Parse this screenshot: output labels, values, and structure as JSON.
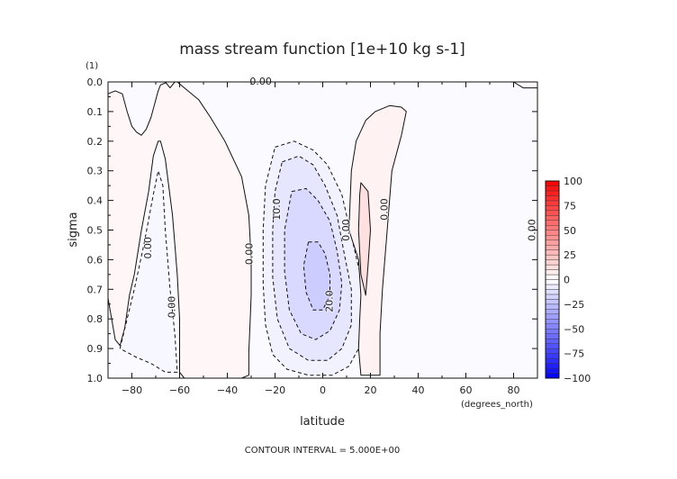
{
  "chart_data": {
    "type": "heatmap",
    "title": "mass stream function [1e+10 kg s-1]",
    "xlabel": "latitude",
    "ylabel": "sigma",
    "x_unit": "(degrees_north)",
    "y_unit": "(1)",
    "xlim": [
      -90,
      90
    ],
    "ylim": [
      0.0,
      1.0
    ],
    "y_inverted": true,
    "x_ticks": [
      -80,
      -60,
      -40,
      -20,
      0,
      20,
      40,
      60,
      80
    ],
    "y_ticks": [
      0.0,
      0.1,
      0.2,
      0.3,
      0.4,
      0.5,
      0.6,
      0.7,
      0.8,
      0.9,
      1.0
    ],
    "y_tick_labels": [
      "0.0",
      "0.1",
      "0.2",
      "0.3",
      "0.4",
      "0.5",
      "0.6",
      "0.7",
      "0.8",
      "0.9",
      "1.0"
    ],
    "contour_interval_text": "CONTOUR INTERVAL = 5.000E+00",
    "colorbar": {
      "min": -100,
      "max": 100,
      "ticks": [
        100,
        75,
        50,
        25,
        0,
        -25,
        -50,
        -75,
        -100
      ],
      "tick_labels": [
        "100",
        "75",
        "50",
        "25",
        "0",
        "−25",
        "−50",
        "−75",
        "−100"
      ],
      "low_color": "#0000ff",
      "mid_color": "#ffffff",
      "high_color": "#ff0000"
    },
    "background_value": -2,
    "regions": [
      {
        "name": "sh-polar-cell",
        "value": 3,
        "points": [
          [
            -90,
            0.04
          ],
          [
            -87,
            0.03
          ],
          [
            -84,
            0.04
          ],
          [
            -82,
            0.1
          ],
          [
            -80,
            0.15
          ],
          [
            -78,
            0.17
          ],
          [
            -76,
            0.18
          ],
          [
            -74,
            0.16
          ],
          [
            -72,
            0.12
          ],
          [
            -69,
            0.03
          ],
          [
            -68,
            0.01
          ],
          [
            -65,
            0.0
          ],
          [
            -61,
            0.0
          ],
          [
            -58,
            0.02
          ],
          [
            -52,
            0.06
          ],
          [
            -47,
            0.12
          ],
          [
            -41,
            0.2
          ],
          [
            -34,
            0.32
          ],
          [
            -31,
            0.45
          ],
          [
            -30,
            0.6
          ],
          [
            -30,
            0.72
          ],
          [
            -30.5,
            0.82
          ],
          [
            -31,
            0.91
          ],
          [
            -31,
            0.99
          ],
          [
            -34,
            1.0
          ],
          [
            -58,
            1.0
          ],
          [
            -60,
            0.98
          ],
          [
            -60,
            0.8
          ],
          [
            -61,
            0.65
          ],
          [
            -63,
            0.45
          ],
          [
            -66,
            0.26
          ],
          [
            -68,
            0.2
          ],
          [
            -69,
            0.2
          ],
          [
            -71,
            0.25
          ],
          [
            -73,
            0.37
          ],
          [
            -76,
            0.5
          ],
          [
            -79,
            0.65
          ],
          [
            -81,
            0.72
          ],
          [
            -83,
            0.83
          ],
          [
            -85,
            0.89
          ],
          [
            -87,
            0.87
          ],
          [
            -88.5,
            0.8
          ],
          [
            -90,
            0.73
          ]
        ]
      },
      {
        "name": "sh-inner-cell",
        "value": -3,
        "points": [
          [
            -85,
            0.9
          ],
          [
            -82,
            0.8
          ],
          [
            -79,
            0.7
          ],
          [
            -75,
            0.55
          ],
          [
            -71,
            0.38
          ],
          [
            -69,
            0.3
          ],
          [
            -67,
            0.35
          ],
          [
            -66,
            0.5
          ],
          [
            -64,
            0.7
          ],
          [
            -62,
            0.85
          ],
          [
            -61,
            0.98
          ],
          [
            -66,
            0.98
          ],
          [
            -72,
            0.95
          ],
          [
            -78,
            0.93
          ]
        ]
      },
      {
        "name": "hadley-cell-outer",
        "value": -5,
        "points": [
          [
            -20,
            0.22
          ],
          [
            -12,
            0.2
          ],
          [
            -4,
            0.23
          ],
          [
            2,
            0.28
          ],
          [
            8,
            0.38
          ],
          [
            12,
            0.52
          ],
          [
            16,
            0.66
          ],
          [
            17,
            0.8
          ],
          [
            15,
            0.9
          ],
          [
            11,
            0.96
          ],
          [
            4,
            0.99
          ],
          [
            -6,
            0.99
          ],
          [
            -15,
            0.97
          ],
          [
            -21,
            0.92
          ],
          [
            -24,
            0.82
          ],
          [
            -25,
            0.68
          ],
          [
            -25,
            0.5
          ],
          [
            -24,
            0.35
          ]
        ]
      },
      {
        "name": "hadley-cell-10",
        "value": -10,
        "points": [
          [
            -17,
            0.27
          ],
          [
            -10,
            0.25
          ],
          [
            -4,
            0.28
          ],
          [
            1,
            0.35
          ],
          [
            6,
            0.45
          ],
          [
            9,
            0.58
          ],
          [
            12,
            0.7
          ],
          [
            12,
            0.82
          ],
          [
            8,
            0.9
          ],
          [
            2,
            0.94
          ],
          [
            -6,
            0.94
          ],
          [
            -14,
            0.9
          ],
          [
            -19,
            0.8
          ],
          [
            -21,
            0.66
          ],
          [
            -21,
            0.5
          ],
          [
            -20,
            0.37
          ]
        ]
      },
      {
        "name": "hadley-cell-15",
        "value": -15,
        "points": [
          [
            -13,
            0.37
          ],
          [
            -7,
            0.36
          ],
          [
            -2,
            0.4
          ],
          [
            3,
            0.47
          ],
          [
            6,
            0.57
          ],
          [
            8,
            0.68
          ],
          [
            7,
            0.77
          ],
          [
            3,
            0.84
          ],
          [
            -3,
            0.87
          ],
          [
            -9,
            0.85
          ],
          [
            -14,
            0.77
          ],
          [
            -16,
            0.64
          ],
          [
            -16,
            0.5
          ]
        ]
      },
      {
        "name": "hadley-cell-20",
        "value": -20,
        "points": [
          [
            -6,
            0.54
          ],
          [
            -2,
            0.54
          ],
          [
            1,
            0.58
          ],
          [
            3,
            0.65
          ],
          [
            3,
            0.72
          ],
          [
            0,
            0.77
          ],
          [
            -4,
            0.77
          ],
          [
            -7,
            0.71
          ],
          [
            -8,
            0.62
          ]
        ]
      },
      {
        "name": "nh-cell",
        "value": 5,
        "points": [
          [
            18,
            0.13
          ],
          [
            22,
            0.1
          ],
          [
            28,
            0.08
          ],
          [
            33,
            0.085
          ],
          [
            35,
            0.1
          ],
          [
            33,
            0.18
          ],
          [
            29,
            0.3
          ],
          [
            27,
            0.5
          ],
          [
            25,
            0.7
          ],
          [
            24,
            0.85
          ],
          [
            24,
            0.99
          ],
          [
            16,
            0.99
          ],
          [
            15,
            0.9
          ],
          [
            15.5,
            0.8
          ],
          [
            16,
            0.72
          ],
          [
            15,
            0.6
          ],
          [
            11,
            0.5
          ],
          [
            12,
            0.3
          ],
          [
            14,
            0.2
          ]
        ]
      },
      {
        "name": "nh-cell-core",
        "value": 12,
        "points": [
          [
            16,
            0.34
          ],
          [
            19,
            0.37
          ],
          [
            20,
            0.5
          ],
          [
            19,
            0.62
          ],
          [
            18,
            0.72
          ],
          [
            16,
            0.65
          ],
          [
            15,
            0.5
          ],
          [
            15.5,
            0.38
          ]
        ]
      },
      {
        "name": "top-right-cell",
        "value": 2,
        "points": [
          [
            80,
            0.0
          ],
          [
            90,
            0.0
          ],
          [
            90,
            0.02
          ],
          [
            84,
            0.02
          ]
        ]
      },
      {
        "name": "top-left-sliver",
        "value": 2,
        "points": [
          [
            -66,
            0.0
          ],
          [
            -64,
            0.02
          ],
          [
            -62,
            0.0
          ]
        ]
      }
    ],
    "contour_labels": [
      {
        "text": "0.00",
        "x": -26,
        "y": 0.0
      },
      {
        "text": "0.00",
        "x": -73,
        "y": 0.56
      },
      {
        "text": "0.00",
        "x": -30.5,
        "y": 0.58
      },
      {
        "text": "0.00",
        "x": -63,
        "y": 0.76
      },
      {
        "text": "10.0",
        "x": -19,
        "y": 0.43
      },
      {
        "text": "20.0",
        "x": 3,
        "y": 0.74
      },
      {
        "text": "0.00",
        "x": 10,
        "y": 0.5
      },
      {
        "text": "0.00",
        "x": 26,
        "y": 0.43
      },
      {
        "text": "0.00",
        "x": 88,
        "y": 0.5
      }
    ]
  }
}
